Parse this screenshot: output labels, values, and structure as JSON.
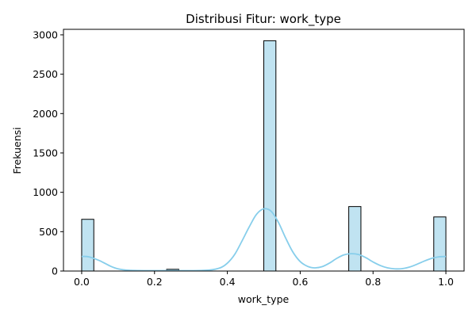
{
  "chart_data": {
    "type": "bar",
    "title": "Distribusi Fitur: work_type",
    "xlabel": "work_type",
    "ylabel": "Frekuensi",
    "xlim": [
      -0.05,
      1.05
    ],
    "ylim": [
      0,
      3070
    ],
    "x_ticks": [
      "0.0",
      "0.2",
      "0.4",
      "0.6",
      "0.8",
      "1.0"
    ],
    "y_ticks": [
      "0",
      "500",
      "1000",
      "1500",
      "2000",
      "2500",
      "3000"
    ],
    "bar_color": "#c0e3f1",
    "bar_edge_color": "#000000",
    "kde_color": "#87ceeb",
    "grid": false,
    "series": [
      {
        "bins": [
          {
            "x_start": 0.0,
            "x_end": 0.0333,
            "value": 657
          },
          {
            "x_start": 0.2333,
            "x_end": 0.2667,
            "value": 22
          },
          {
            "x_start": 0.5,
            "x_end": 0.5333,
            "value": 2925
          },
          {
            "x_start": 0.7333,
            "x_end": 0.7667,
            "value": 819
          },
          {
            "x_start": 0.9667,
            "x_end": 1.0,
            "value": 687
          }
        ],
        "kde": [
          [
            0.0,
            185
          ],
          [
            0.02,
            180
          ],
          [
            0.05,
            130
          ],
          [
            0.08,
            60
          ],
          [
            0.1,
            28
          ],
          [
            0.13,
            10
          ],
          [
            0.18,
            5
          ],
          [
            0.25,
            6
          ],
          [
            0.3,
            5
          ],
          [
            0.35,
            12
          ],
          [
            0.38,
            40
          ],
          [
            0.4,
            100
          ],
          [
            0.42,
            210
          ],
          [
            0.44,
            380
          ],
          [
            0.46,
            560
          ],
          [
            0.48,
            720
          ],
          [
            0.5,
            790
          ],
          [
            0.52,
            760
          ],
          [
            0.54,
            620
          ],
          [
            0.56,
            420
          ],
          [
            0.58,
            240
          ],
          [
            0.6,
            120
          ],
          [
            0.62,
            60
          ],
          [
            0.64,
            40
          ],
          [
            0.66,
            55
          ],
          [
            0.68,
            100
          ],
          [
            0.7,
            160
          ],
          [
            0.72,
            205
          ],
          [
            0.74,
            220
          ],
          [
            0.76,
            210
          ],
          [
            0.78,
            170
          ],
          [
            0.8,
            115
          ],
          [
            0.82,
            70
          ],
          [
            0.84,
            40
          ],
          [
            0.86,
            28
          ],
          [
            0.88,
            30
          ],
          [
            0.9,
            50
          ],
          [
            0.92,
            85
          ],
          [
            0.94,
            125
          ],
          [
            0.96,
            160
          ],
          [
            0.98,
            180
          ],
          [
            1.0,
            185
          ]
        ]
      }
    ]
  }
}
